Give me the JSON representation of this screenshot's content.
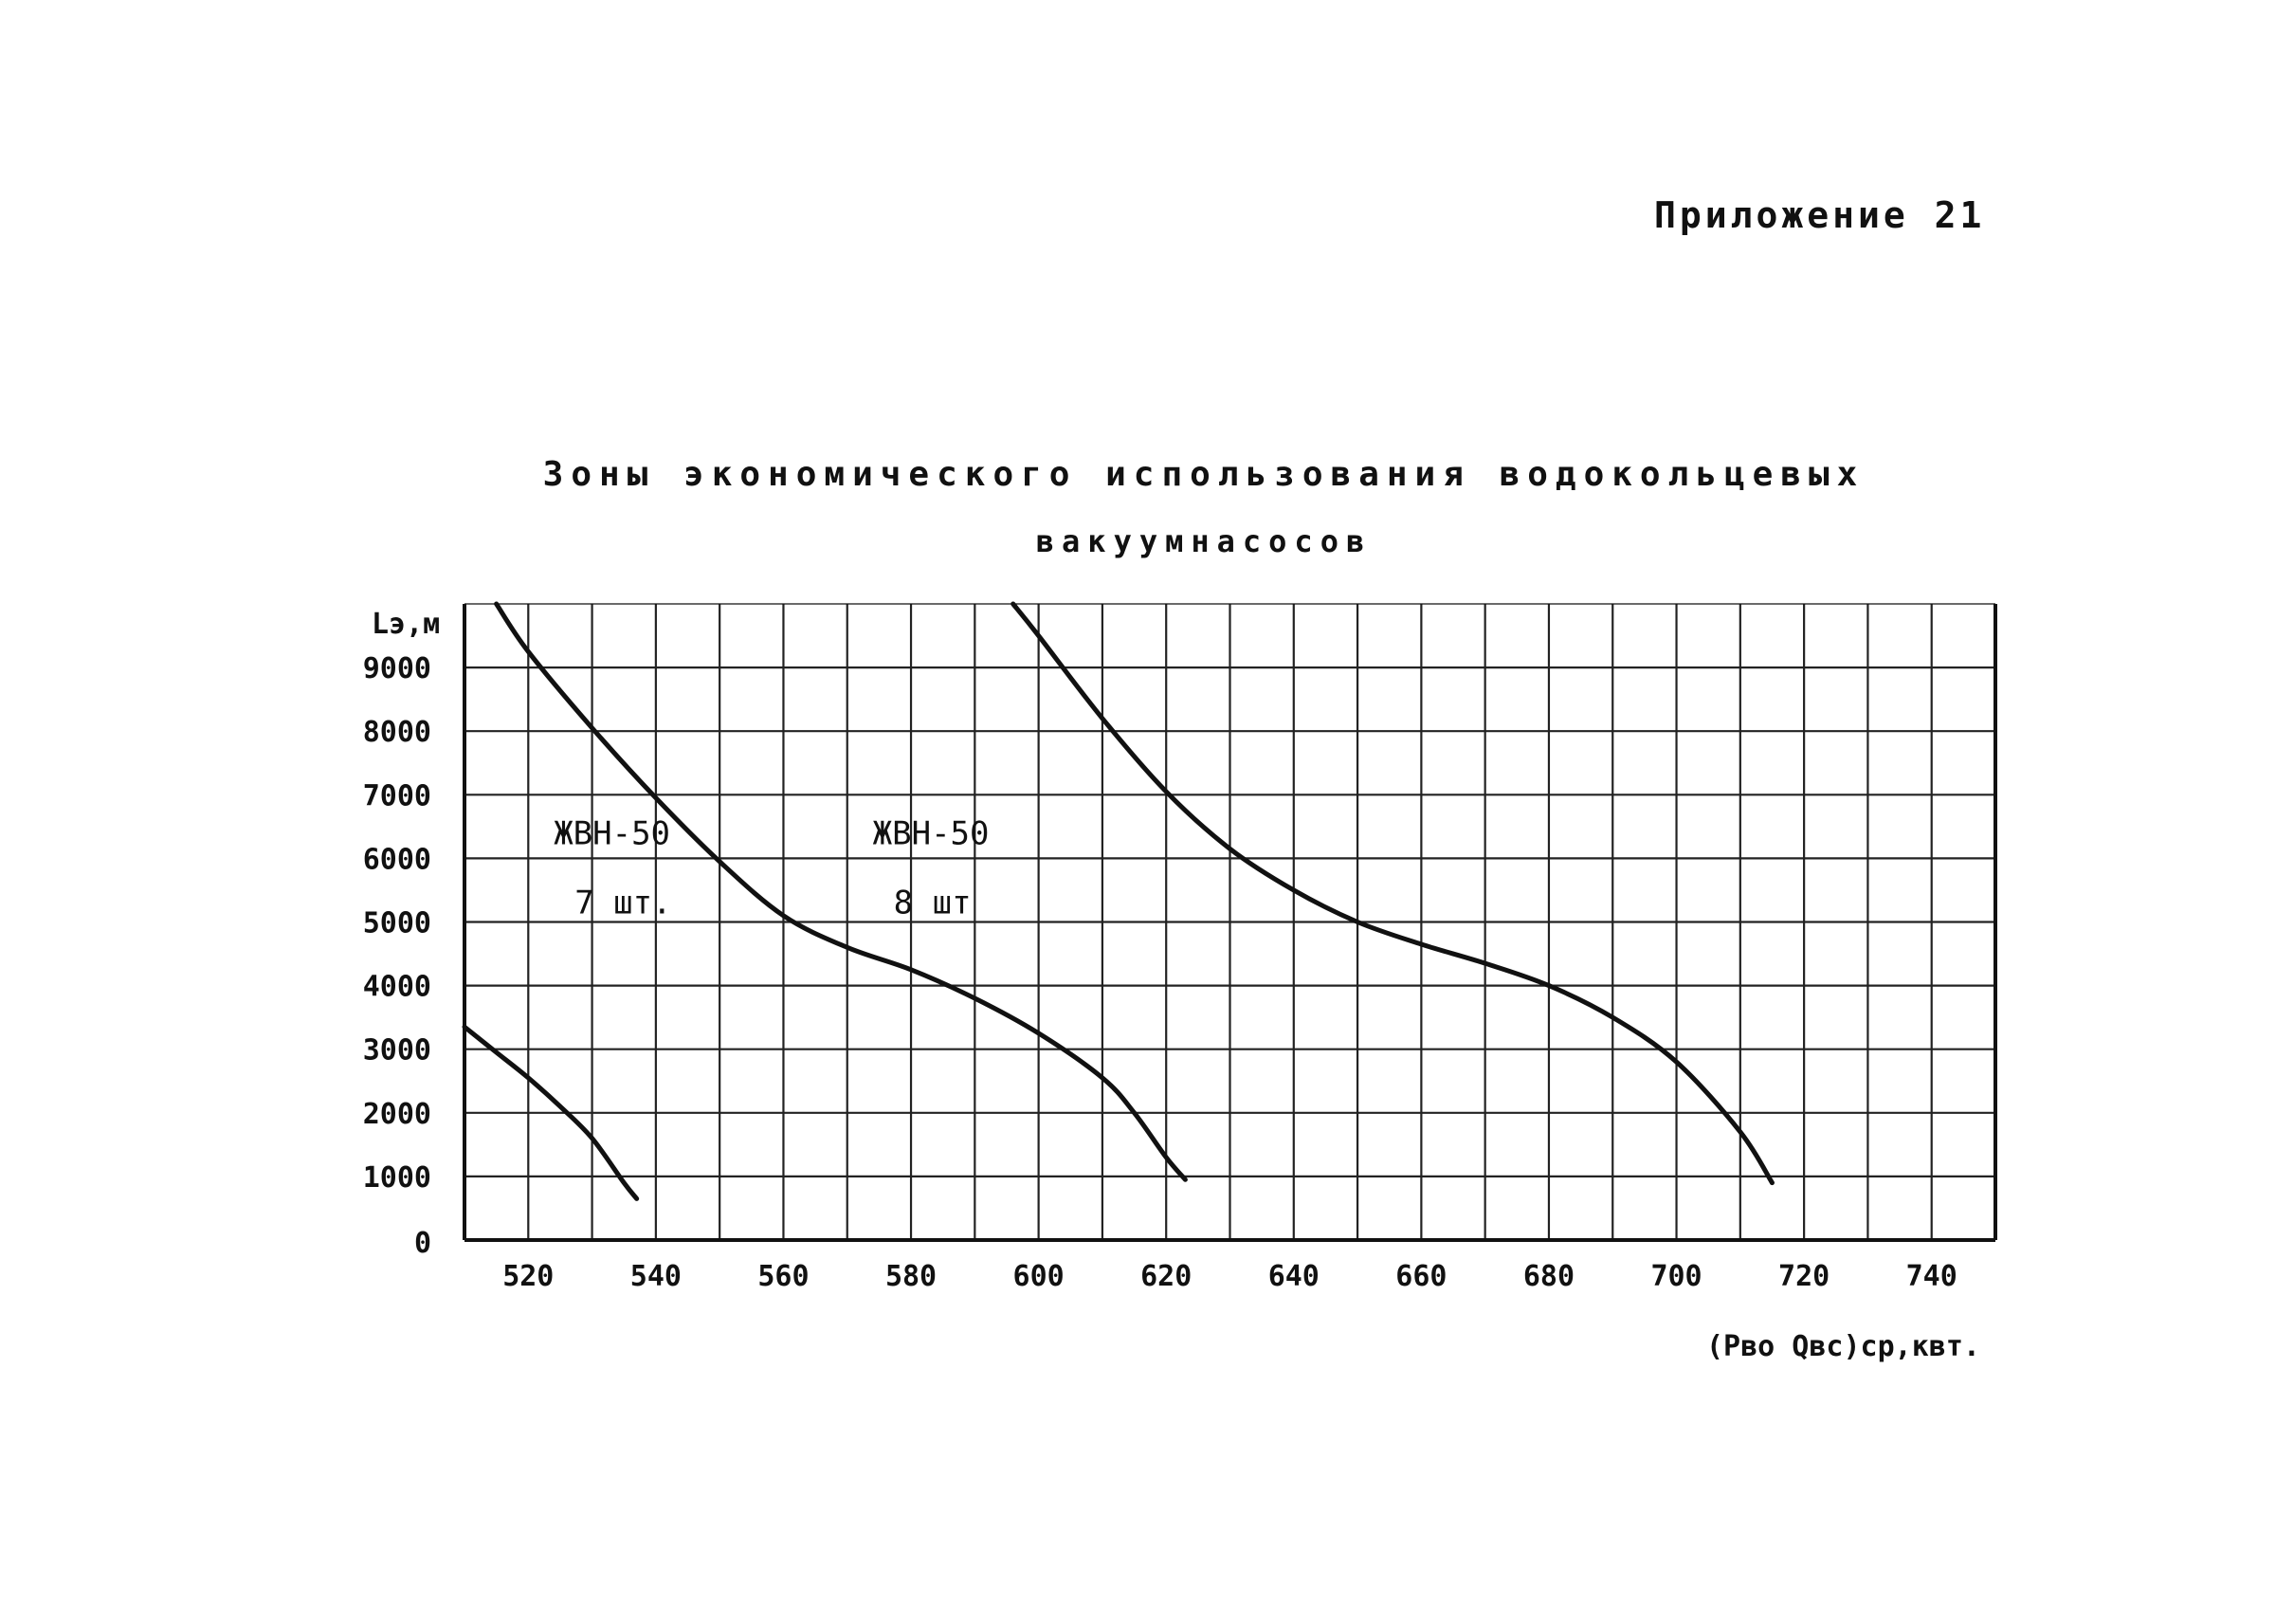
{
  "appendix_label": "Приложение 21",
  "chart_data": {
    "type": "line",
    "title_line1": "Зоны экономического использования водокольцевых",
    "title_line2": "вакуумнасосов",
    "ylabel": "Lэ,м",
    "xlabel": "(Pво Qвс)ср,квт.",
    "xlim": [
      510,
      750
    ],
    "ylim": [
      0,
      10000
    ],
    "grid": true,
    "x_ticks": [
      520,
      540,
      560,
      580,
      600,
      620,
      640,
      660,
      680,
      700,
      720,
      740
    ],
    "y_ticks": [
      0,
      1000,
      2000,
      3000,
      4000,
      5000,
      6000,
      7000,
      8000,
      9000
    ],
    "annotations": [
      {
        "line1": "ЖВН-50",
        "line2": "7 шт.",
        "x": 524,
        "y": 6400
      },
      {
        "line1": "ЖВН-50",
        "line2": "8 шт",
        "x": 574,
        "y": 6400
      }
    ],
    "series": [
      {
        "values": [
          [
            510,
            3350
          ],
          [
            515,
            2950
          ],
          [
            520,
            2550
          ],
          [
            525,
            2100
          ],
          [
            530,
            1600
          ],
          [
            535,
            900
          ],
          [
            537,
            650
          ]
        ]
      },
      {
        "values": [
          [
            515,
            10000
          ],
          [
            520,
            9250
          ],
          [
            530,
            8050
          ],
          [
            540,
            6950
          ],
          [
            550,
            5950
          ],
          [
            560,
            5100
          ],
          [
            570,
            4600
          ],
          [
            580,
            4250
          ],
          [
            590,
            3800
          ],
          [
            600,
            3250
          ],
          [
            610,
            2550
          ],
          [
            615,
            2000
          ],
          [
            620,
            1300
          ],
          [
            623,
            950
          ]
        ]
      },
      {
        "values": [
          [
            596,
            10000
          ],
          [
            600,
            9500
          ],
          [
            610,
            8200
          ],
          [
            620,
            7050
          ],
          [
            630,
            6150
          ],
          [
            640,
            5500
          ],
          [
            650,
            5000
          ],
          [
            660,
            4650
          ],
          [
            670,
            4350
          ],
          [
            680,
            4000
          ],
          [
            690,
            3500
          ],
          [
            700,
            2800
          ],
          [
            710,
            1700
          ],
          [
            715,
            900
          ]
        ]
      }
    ]
  }
}
